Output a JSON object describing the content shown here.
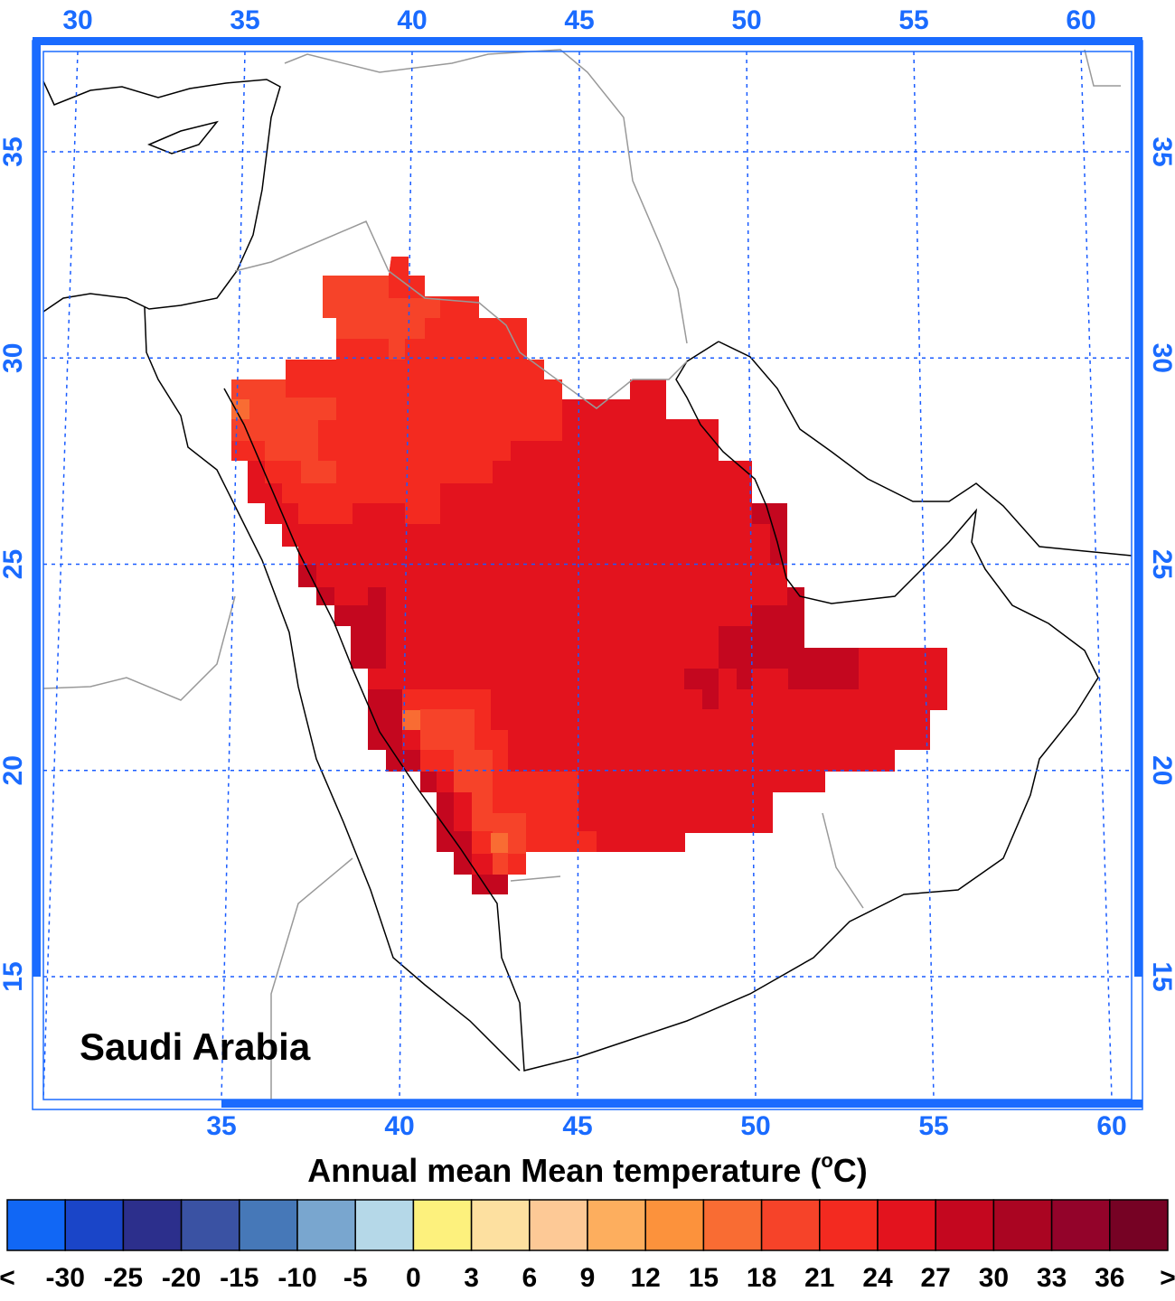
{
  "map": {
    "title": "Annual mean Mean temperature (°C)",
    "title_parts": [
      "Annual mean Mean temperature (",
      "o",
      "C)"
    ],
    "region_label": "Saudi Arabia",
    "top_ticks": [
      30,
      35,
      40,
      45,
      50,
      55,
      60
    ],
    "bottom_ticks": [
      35,
      40,
      45,
      50,
      55,
      60
    ],
    "left_ticks": [
      15,
      20,
      25,
      30,
      35
    ],
    "right_ticks": [
      15,
      20,
      25,
      30,
      35
    ],
    "colorbar": {
      "colors": [
        "#1167f5",
        "#1a45c8",
        "#2c2f8c",
        "#3a52a3",
        "#4678b8",
        "#79a6cf",
        "#b5d8e8",
        "#fdf17d",
        "#fde0a0",
        "#fdc996",
        "#fdae5e",
        "#fc923c",
        "#f96c33",
        "#f64329",
        "#f32a20",
        "#e3131e",
        "#c4071f",
        "#aa0522",
        "#93032a",
        "#760224"
      ],
      "labels": [
        "<",
        -30,
        -25,
        -20,
        -15,
        -10,
        -5,
        0,
        3,
        6,
        9,
        12,
        15,
        18,
        21,
        24,
        27,
        30,
        33,
        36,
        ">"
      ]
    }
  }
}
